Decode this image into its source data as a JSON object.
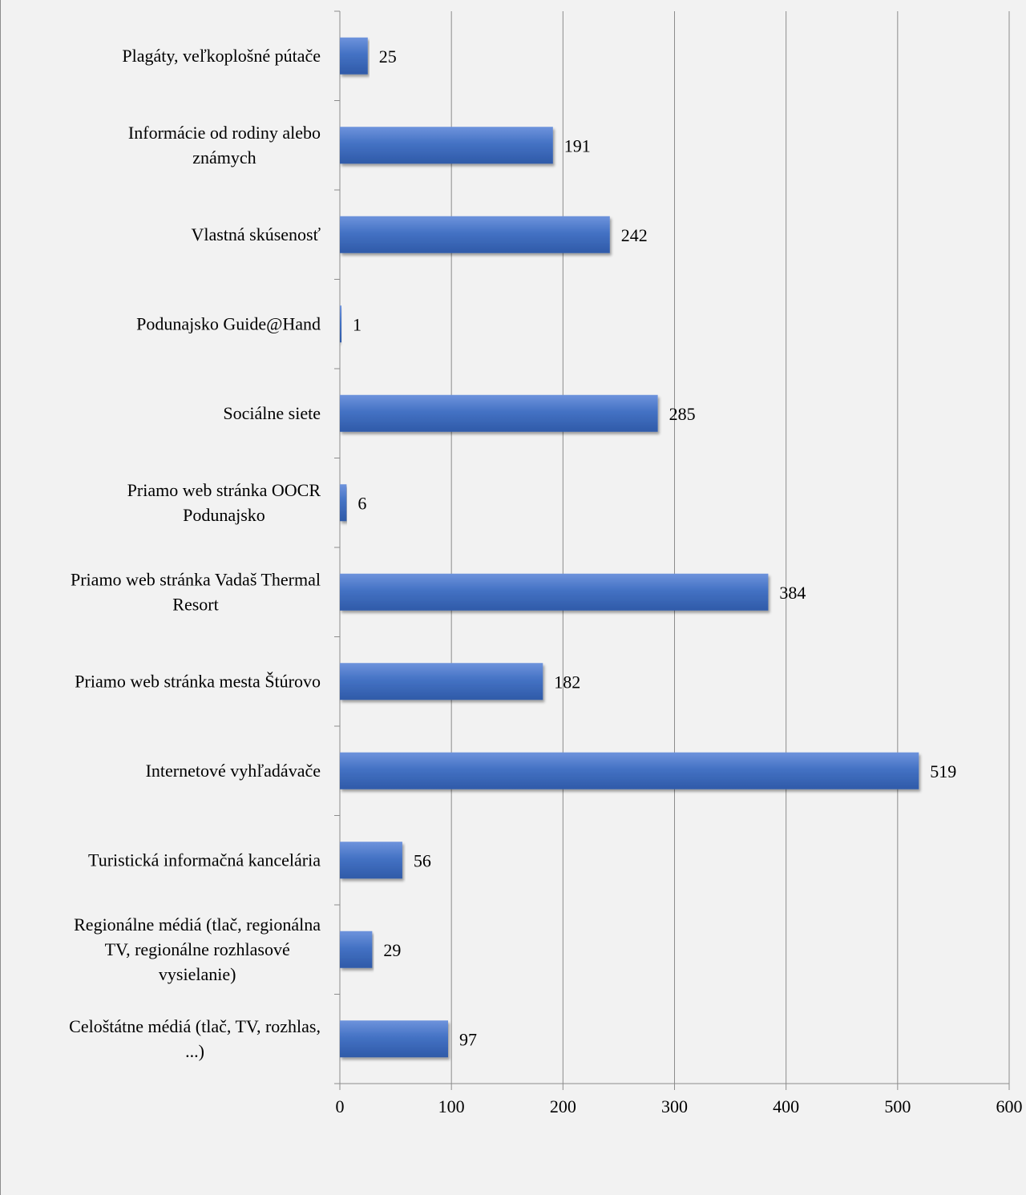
{
  "chart_data": {
    "type": "bar",
    "orientation": "horizontal",
    "title": "",
    "xlabel": "",
    "ylabel": "",
    "categories": [
      [
        "Plagáty, veľkoplošné pútače"
      ],
      [
        "Informácie od rodiny alebo",
        "známych"
      ],
      [
        "Vlastná skúsenosť"
      ],
      [
        "Podunajsko Guide@Hand"
      ],
      [
        "Sociálne siete"
      ],
      [
        "Priamo web stránka OOCR",
        "Podunajsko"
      ],
      [
        "Priamo web stránka Vadaš Thermal",
        "Resort"
      ],
      [
        "Priamo web stránka mesta Štúrovo"
      ],
      [
        "Internetové vyhľadávače"
      ],
      [
        "Turistická informačná kancelária"
      ],
      [
        "Regionálne médiá (tlač, regionálna",
        "TV, regionálne rozhlasové",
        "vysielanie)"
      ],
      [
        "Celoštátne médiá (tlač, TV, rozhlas,",
        "...)"
      ]
    ],
    "values": [
      25,
      191,
      242,
      1,
      285,
      6,
      384,
      182,
      519,
      56,
      29,
      97
    ],
    "xlim": [
      0,
      600
    ],
    "xticks": [
      0,
      100,
      200,
      300,
      400,
      500,
      600
    ],
    "grid": "vertical",
    "legend": "none",
    "bar_color": "#4472c4",
    "bar_color_light": "#6e93dc",
    "bar_color_dark": "#2f5aa8",
    "grid_color": "#8c8c8c"
  }
}
